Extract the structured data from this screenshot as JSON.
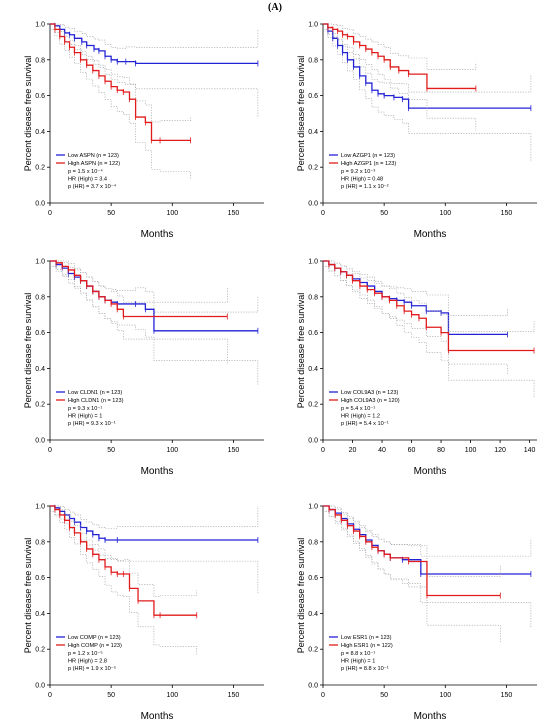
{
  "figure_label": "(A)",
  "colors": {
    "low": "#2323d6",
    "high": "#e11b1b",
    "ci": "#999999"
  },
  "chart_data": [
    {
      "type": "line",
      "title": "",
      "xlabel": "Months",
      "ylabel": "Percent disease free survival",
      "xlim": [
        0,
        175
      ],
      "ylim": [
        0,
        1
      ],
      "xticks": [
        "0",
        "50",
        "100",
        "150"
      ],
      "yticks": [
        "0.0",
        "0.2",
        "0.4",
        "0.6",
        "0.8",
        "1.0"
      ],
      "legend": "bottom-left",
      "series": [
        {
          "name": "Low ASPN (n = 123)",
          "group": "low",
          "x": [
            0,
            4,
            8,
            12,
            16,
            20,
            26,
            30,
            36,
            40,
            45,
            50,
            55,
            62,
            70,
            170
          ],
          "y": [
            1.0,
            0.99,
            0.97,
            0.95,
            0.94,
            0.92,
            0.9,
            0.88,
            0.86,
            0.85,
            0.82,
            0.8,
            0.79,
            0.79,
            0.78,
            0.78
          ]
        },
        {
          "name": "High ASPN (n = 122)",
          "group": "high",
          "x": [
            0,
            4,
            8,
            12,
            16,
            20,
            25,
            30,
            35,
            40,
            45,
            50,
            55,
            60,
            65,
            70,
            78,
            83,
            90,
            115
          ],
          "y": [
            1.0,
            0.97,
            0.93,
            0.9,
            0.87,
            0.84,
            0.8,
            0.77,
            0.74,
            0.71,
            0.68,
            0.65,
            0.63,
            0.62,
            0.58,
            0.48,
            0.45,
            0.35,
            0.35,
            0.35
          ]
        }
      ],
      "annotations": [
        "p = 1.5 x 10⁻⁴",
        "HR (High) = 3.4",
        "p (HR) = 3.7 x 10⁻⁴"
      ]
    },
    {
      "type": "line",
      "title": "",
      "xlabel": "Months",
      "ylabel": "Percent disease free survival",
      "xlim": [
        0,
        175
      ],
      "ylim": [
        0,
        1
      ],
      "xticks": [
        "0",
        "50",
        "100",
        "150"
      ],
      "yticks": [
        "0.0",
        "0.2",
        "0.4",
        "0.6",
        "0.8",
        "1.0"
      ],
      "legend": "bottom-left",
      "series": [
        {
          "name": "Low AZGP1 (n = 123)",
          "group": "low",
          "x": [
            0,
            4,
            8,
            12,
            16,
            20,
            25,
            30,
            35,
            40,
            45,
            50,
            58,
            65,
            70,
            170
          ],
          "y": [
            1.0,
            0.96,
            0.92,
            0.88,
            0.84,
            0.8,
            0.76,
            0.71,
            0.67,
            0.63,
            0.61,
            0.6,
            0.59,
            0.58,
            0.53,
            0.53
          ]
        },
        {
          "name": "High AZGP1 (n = 123)",
          "group": "high",
          "x": [
            0,
            4,
            8,
            12,
            16,
            20,
            25,
            30,
            35,
            40,
            45,
            50,
            55,
            62,
            70,
            85,
            125
          ],
          "y": [
            1.0,
            0.98,
            0.97,
            0.96,
            0.94,
            0.93,
            0.9,
            0.88,
            0.86,
            0.84,
            0.82,
            0.8,
            0.76,
            0.74,
            0.72,
            0.64,
            0.64
          ]
        }
      ],
      "annotations": [
        "p = 9.2 x 10⁻³",
        "HR (High) = 0.48",
        "p (HR) = 1.1 x 10⁻²"
      ]
    },
    {
      "type": "line",
      "title": "",
      "xlabel": "Months",
      "ylabel": "Percent disease free survival",
      "xlim": [
        0,
        175
      ],
      "ylim": [
        0,
        1
      ],
      "xticks": [
        "0",
        "50",
        "100",
        "150"
      ],
      "yticks": [
        "0.0",
        "0.2",
        "0.4",
        "0.6",
        "0.8",
        "1.0"
      ],
      "legend": "bottom-left",
      "series": [
        {
          "name": "Low CLDN1 (n = 123)",
          "group": "low",
          "x": [
            0,
            5,
            10,
            15,
            20,
            25,
            30,
            35,
            40,
            45,
            50,
            55,
            70,
            78,
            85,
            170
          ],
          "y": [
            1.0,
            0.98,
            0.96,
            0.93,
            0.91,
            0.89,
            0.86,
            0.83,
            0.8,
            0.78,
            0.77,
            0.76,
            0.76,
            0.73,
            0.61,
            0.61
          ]
        },
        {
          "name": "High CLDN1 (n = 123)",
          "group": "high",
          "x": [
            0,
            5,
            10,
            15,
            20,
            25,
            30,
            35,
            40,
            45,
            50,
            55,
            60,
            145
          ],
          "y": [
            1.0,
            0.99,
            0.97,
            0.95,
            0.92,
            0.89,
            0.86,
            0.83,
            0.8,
            0.78,
            0.76,
            0.73,
            0.69,
            0.69
          ]
        }
      ],
      "annotations": [
        "p = 9.3 x 10⁻¹",
        "HR (High) = 1",
        "p (HR) = 9.3 x 10⁻¹"
      ]
    },
    {
      "type": "line",
      "title": "",
      "xlabel": "Months",
      "ylabel": "Percent disease free survival",
      "xlim": [
        0,
        145
      ],
      "ylim": [
        0,
        1
      ],
      "xticks": [
        "0",
        "20",
        "40",
        "60",
        "80",
        "100",
        "120",
        "140"
      ],
      "yticks": [
        "0.0",
        "0.2",
        "0.4",
        "0.6",
        "0.8",
        "1.0"
      ],
      "legend": "bottom-left",
      "series": [
        {
          "name": "Low COL9A3 (n = 123)",
          "group": "low",
          "x": [
            0,
            4,
            8,
            12,
            16,
            20,
            25,
            30,
            35,
            40,
            45,
            50,
            55,
            60,
            70,
            80,
            85,
            125
          ],
          "y": [
            1.0,
            0.98,
            0.96,
            0.94,
            0.92,
            0.9,
            0.88,
            0.86,
            0.83,
            0.8,
            0.79,
            0.78,
            0.77,
            0.75,
            0.72,
            0.71,
            0.59,
            0.59
          ]
        },
        {
          "name": "High COL9A3 (n = 120)",
          "group": "high",
          "x": [
            0,
            4,
            8,
            12,
            16,
            20,
            25,
            30,
            35,
            40,
            45,
            50,
            55,
            60,
            65,
            70,
            80,
            85,
            143
          ],
          "y": [
            1.0,
            0.98,
            0.96,
            0.94,
            0.92,
            0.89,
            0.86,
            0.84,
            0.82,
            0.8,
            0.78,
            0.75,
            0.72,
            0.7,
            0.68,
            0.63,
            0.6,
            0.5,
            0.5
          ]
        }
      ],
      "annotations": [
        "p = 5.4 x 10⁻¹",
        "HR (High) = 1.2",
        "p (HR) = 5.4 x 10⁻¹"
      ]
    },
    {
      "type": "line",
      "title": "",
      "xlabel": "Months",
      "ylabel": "Percent disease free survival",
      "xlim": [
        0,
        175
      ],
      "ylim": [
        0,
        1
      ],
      "xticks": [
        "0",
        "50",
        "100",
        "150"
      ],
      "yticks": [
        "0.0",
        "0.2",
        "0.4",
        "0.6",
        "0.8",
        "1.0"
      ],
      "legend": "bottom-left",
      "series": [
        {
          "name": "Low COMP (n = 123)",
          "group": "low",
          "x": [
            0,
            4,
            8,
            12,
            16,
            20,
            25,
            30,
            35,
            40,
            45,
            55,
            170
          ],
          "y": [
            1.0,
            0.99,
            0.97,
            0.95,
            0.93,
            0.91,
            0.88,
            0.86,
            0.84,
            0.82,
            0.81,
            0.81,
            0.81
          ]
        },
        {
          "name": "High COMP (n = 123)",
          "group": "high",
          "x": [
            0,
            4,
            8,
            12,
            16,
            20,
            25,
            30,
            35,
            40,
            45,
            50,
            55,
            60,
            65,
            72,
            85,
            90,
            120
          ],
          "y": [
            1.0,
            0.98,
            0.95,
            0.92,
            0.88,
            0.85,
            0.8,
            0.76,
            0.73,
            0.7,
            0.66,
            0.63,
            0.62,
            0.62,
            0.54,
            0.47,
            0.39,
            0.39,
            0.39
          ]
        }
      ],
      "annotations": [
        "p = 1.2 x 10⁻⁵",
        "HR (High) = 2.8",
        "p (HR) = 1.9 x 10⁻⁵"
      ]
    },
    {
      "type": "line",
      "title": "",
      "xlabel": "Months",
      "ylabel": "Percent disease free survival",
      "xlim": [
        0,
        175
      ],
      "ylim": [
        0,
        1
      ],
      "xticks": [
        "0",
        "50",
        "100",
        "150"
      ],
      "yticks": [
        "0.0",
        "0.2",
        "0.4",
        "0.6",
        "0.8",
        "1.0"
      ],
      "legend": "bottom-left",
      "series": [
        {
          "name": "Low ESR1 (n = 123)",
          "group": "low",
          "x": [
            0,
            5,
            10,
            15,
            20,
            25,
            30,
            35,
            40,
            45,
            50,
            55,
            65,
            80,
            170
          ],
          "y": [
            1.0,
            0.98,
            0.96,
            0.93,
            0.9,
            0.87,
            0.84,
            0.81,
            0.78,
            0.75,
            0.73,
            0.71,
            0.7,
            0.62,
            0.62
          ]
        },
        {
          "name": "High ESR1 (n = 122)",
          "group": "high",
          "x": [
            0,
            5,
            10,
            15,
            20,
            25,
            30,
            35,
            40,
            45,
            50,
            55,
            70,
            85,
            145
          ],
          "y": [
            1.0,
            0.98,
            0.95,
            0.92,
            0.89,
            0.86,
            0.83,
            0.8,
            0.77,
            0.75,
            0.73,
            0.71,
            0.69,
            0.5,
            0.5
          ]
        }
      ],
      "annotations": [
        "p = 8.8 x 10⁻¹",
        "HR (High) = 1",
        "p (HR) = 8.8 x 10⁻¹"
      ]
    }
  ]
}
